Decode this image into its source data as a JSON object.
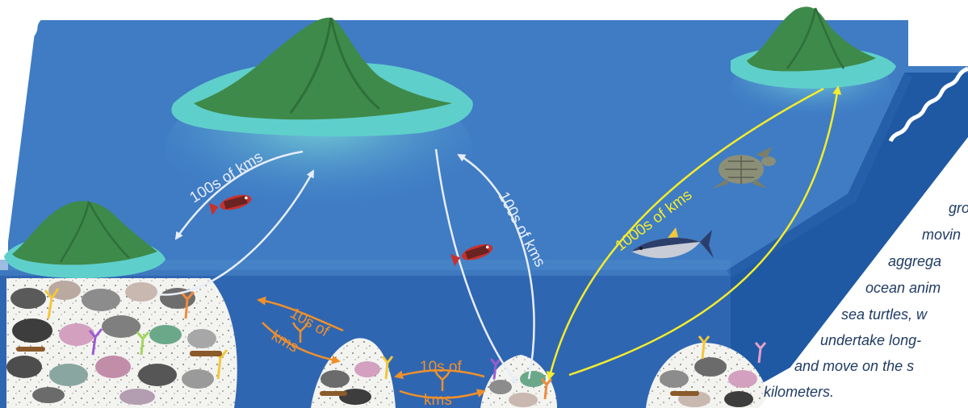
{
  "labels": {
    "hundreds_left": "100s of kms",
    "hundreds_right": "100s of kms",
    "thousands": "1000s of kms",
    "tens_left_top": "10s of",
    "tens_left_bottom": "kms",
    "tens_mid_top": "10s of",
    "tens_mid_bottom": "kms"
  },
  "caption_lines": [
    "gro",
    "movin",
    "aggrega",
    "ocean anim",
    "sea turtles, w",
    "undertake long-",
    "and move on the s",
    "kilometers."
  ],
  "colors": {
    "ocean_surface": "#3f7cc4",
    "ocean_front": "#2f66b2",
    "ocean_side": "#1c56a0",
    "island": "#3e8a4a",
    "shallow": "#5fcfcb",
    "arrow_white": "#e8eef7",
    "arrow_yellow": "#f5ec2a",
    "arrow_orange": "#f0902a"
  },
  "icons": [
    "island-icon",
    "fish-icon",
    "turtle-icon",
    "tuna-icon",
    "coral-icon"
  ]
}
